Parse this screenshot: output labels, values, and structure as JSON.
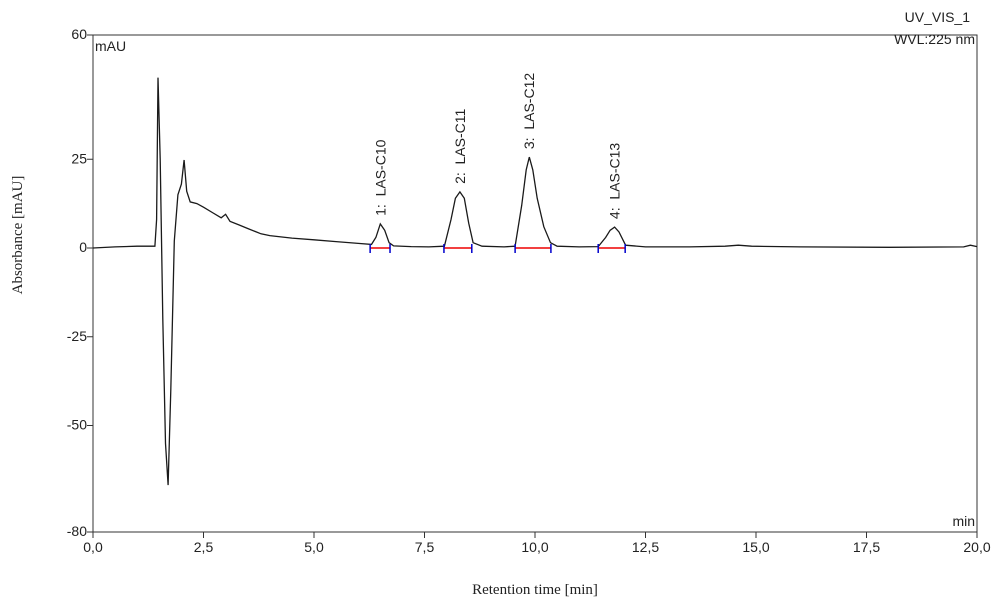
{
  "chart_data": {
    "type": "line",
    "title": "UV_VIS_1",
    "subtitle": "WVL:225 nm",
    "x_label": "Retention time [min]",
    "y_label": "Absorbance [mAU]",
    "y_unit": "mAU",
    "x_unit": "min",
    "xlim": [
      0,
      20
    ],
    "ylim": [
      -80,
      60
    ],
    "xticks": [
      {
        "value": 0,
        "label": "0,0"
      },
      {
        "value": 2.5,
        "label": "2,5"
      },
      {
        "value": 5,
        "label": "5,0"
      },
      {
        "value": 7.5,
        "label": "7,5"
      },
      {
        "value": 10,
        "label": "10,0"
      },
      {
        "value": 12.5,
        "label": "12,5"
      },
      {
        "value": 15,
        "label": "15,0"
      },
      {
        "value": 17.5,
        "label": "17,5"
      },
      {
        "value": 20,
        "label": "20,0"
      }
    ],
    "yticks": [
      -80,
      -50,
      -25,
      0,
      25,
      60
    ],
    "series": [
      {
        "name": "UV_VIS_1",
        "color": "#1a1a1a",
        "x": [
          0,
          0.5,
          1.0,
          1.4,
          1.44,
          1.47,
          1.52,
          1.58,
          1.64,
          1.7,
          1.76,
          1.84,
          1.92,
          2.0,
          2.06,
          2.12,
          2.2,
          2.35,
          2.5,
          2.7,
          2.9,
          3.0,
          3.1,
          3.3,
          3.5,
          3.8,
          4.0,
          4.5,
          5.0,
          5.5,
          6.0,
          6.3,
          6.4,
          6.5,
          6.6,
          6.7,
          6.8,
          7.2,
          7.6,
          7.95,
          8.1,
          8.2,
          8.3,
          8.4,
          8.5,
          8.6,
          8.8,
          9.3,
          9.55,
          9.7,
          9.8,
          9.87,
          9.95,
          10.05,
          10.2,
          10.35,
          10.5,
          11.0,
          11.43,
          11.6,
          11.7,
          11.8,
          11.9,
          12.05,
          12.5,
          13.5,
          14.3,
          14.6,
          14.9,
          16.0,
          18.0,
          19.7,
          19.85,
          20.0
        ],
        "values": [
          0,
          0.3,
          0.5,
          0.5,
          8,
          48,
          25,
          -20,
          -55,
          -66.8,
          -40,
          2,
          15,
          18,
          24.8,
          16,
          13,
          12.5,
          11.5,
          10,
          8.5,
          9.5,
          7.5,
          6.5,
          5.5,
          4,
          3.5,
          2.8,
          2.3,
          1.8,
          1.3,
          1,
          3,
          6.8,
          5,
          1.5,
          0.6,
          0.4,
          0.3,
          0.5,
          8,
          14,
          15.8,
          14,
          7,
          1.5,
          0.5,
          0.3,
          0.5,
          12,
          22,
          25.6,
          22,
          14,
          6,
          1.5,
          0.5,
          0.3,
          0.4,
          3,
          5,
          5.9,
          4.5,
          0.8,
          0.3,
          0.3,
          0.5,
          0.8,
          0.5,
          0.3,
          0.2,
          0.3,
          0.8,
          0.4
        ]
      }
    ],
    "peaks": [
      {
        "label": "1:  LAS-C10",
        "start": 6.27,
        "end": 6.72
      },
      {
        "label": "2:  LAS-C11",
        "start": 7.94,
        "end": 8.57
      },
      {
        "label": "3:  LAS-C12",
        "start": 9.55,
        "end": 10.36
      },
      {
        "label": "4:  LAS-C13",
        "start": 11.43,
        "end": 12.04
      }
    ]
  }
}
